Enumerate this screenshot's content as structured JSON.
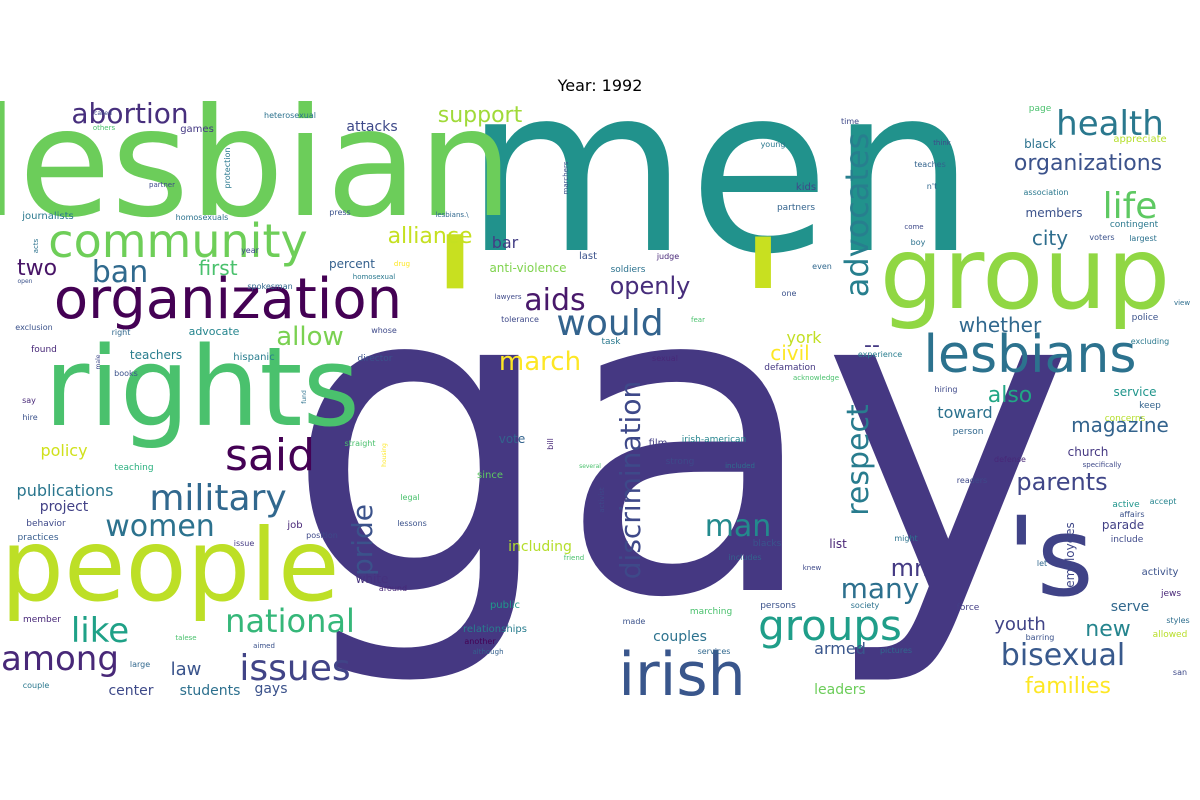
{
  "title": "Year: 1992",
  "chart_data": {
    "type": "wordcloud",
    "title": "Year: 1992",
    "palette": "viridis",
    "words": [
      {
        "text": "gay",
        "size": 430,
        "color": "#453882"
      },
      {
        "text": "men",
        "size": 230,
        "color": "#21928c"
      },
      {
        "text": "lesbian",
        "size": 150,
        "color": "#6ccd5a"
      },
      {
        "text": "'",
        "size": 200,
        "color": "#c8e020"
      },
      {
        "text": "'",
        "size": 190,
        "color": "#c8e020"
      },
      {
        "text": "'s",
        "size": 110,
        "color": "#404387"
      },
      {
        "text": "rights",
        "size": 110,
        "color": "#4ac16d"
      },
      {
        "text": "people",
        "size": 100,
        "color": "#bddf26"
      },
      {
        "text": "group",
        "size": 100,
        "color": "#90d743"
      },
      {
        "text": "organization",
        "size": 56,
        "color": "#440154"
      },
      {
        "text": "irish",
        "size": 60,
        "color": "#39568c"
      },
      {
        "text": "lesbians",
        "size": 52,
        "color": "#2c728e"
      },
      {
        "text": "community",
        "size": 46,
        "color": "#6ece58"
      },
      {
        "text": "said",
        "size": 44,
        "color": "#440154"
      },
      {
        "text": "groups",
        "size": 42,
        "color": "#1f9e89"
      },
      {
        "text": "military",
        "size": 36,
        "color": "#31688e"
      },
      {
        "text": "life",
        "size": 36,
        "color": "#5ec962"
      },
      {
        "text": "health",
        "size": 34,
        "color": "#2a788e"
      },
      {
        "text": "among",
        "size": 34,
        "color": "#482878"
      },
      {
        "text": "issues",
        "size": 36,
        "color": "#414487"
      },
      {
        "text": "would",
        "size": 36,
        "color": "#33638d"
      },
      {
        "text": "national",
        "size": 32,
        "color": "#35b779"
      },
      {
        "text": "bisexual",
        "size": 30,
        "color": "#38598c"
      },
      {
        "text": "like",
        "size": 34,
        "color": "#1fa187"
      },
      {
        "text": "women",
        "size": 30,
        "color": "#2c728e"
      },
      {
        "text": "advocates",
        "size": 32,
        "color": "#277f8e"
      },
      {
        "text": "respect",
        "size": 30,
        "color": "#287c8e"
      },
      {
        "text": "pride",
        "size": 28,
        "color": "#3b528b"
      },
      {
        "text": "discrimination",
        "size": 28,
        "color": "#3e4989"
      },
      {
        "text": "ban",
        "size": 30,
        "color": "#306a8e"
      },
      {
        "text": "man",
        "size": 30,
        "color": "#238a8d"
      },
      {
        "text": "many",
        "size": 28,
        "color": "#2d708e"
      },
      {
        "text": "aids",
        "size": 30,
        "color": "#48186a"
      },
      {
        "text": "abortion",
        "size": 28,
        "color": "#472f7d"
      },
      {
        "text": "march",
        "size": 26,
        "color": "#fde725"
      },
      {
        "text": "allow",
        "size": 26,
        "color": "#7ad151"
      },
      {
        "text": "openly",
        "size": 24,
        "color": "#472d7b"
      },
      {
        "text": "parents",
        "size": 24,
        "color": "#404688"
      },
      {
        "text": "mr.",
        "size": 24,
        "color": "#443a83"
      },
      {
        "text": "alliance",
        "size": 22,
        "color": "#c5e021"
      },
      {
        "text": "support",
        "size": 22,
        "color": "#a0da39"
      },
      {
        "text": "organizations",
        "size": 22,
        "color": "#3b528b"
      },
      {
        "text": "whether",
        "size": 20,
        "color": "#31688e"
      },
      {
        "text": "magazine",
        "size": 20,
        "color": "#33638d"
      },
      {
        "text": "also",
        "size": 22,
        "color": "#21a685"
      },
      {
        "text": "families",
        "size": 22,
        "color": "#fde725"
      },
      {
        "text": "new",
        "size": 22,
        "color": "#25858e"
      },
      {
        "text": "first",
        "size": 20,
        "color": "#4ac16d"
      },
      {
        "text": "two",
        "size": 22,
        "color": "#481467"
      },
      {
        "text": "city",
        "size": 20,
        "color": "#2e6e8e"
      },
      {
        "text": "civil",
        "size": 20,
        "color": "#fde725"
      },
      {
        "text": "--",
        "size": 22,
        "color": "#443983"
      },
      {
        "text": "law",
        "size": 18,
        "color": "#3a548c"
      },
      {
        "text": "youth",
        "size": 18,
        "color": "#414487"
      },
      {
        "text": "policy",
        "size": 16,
        "color": "#d0e11c"
      },
      {
        "text": "publications",
        "size": 16,
        "color": "#2a768e"
      },
      {
        "text": "york",
        "size": 16,
        "color": "#c2df23"
      },
      {
        "text": "toward",
        "size": 16,
        "color": "#2c728e"
      },
      {
        "text": "armed",
        "size": 16,
        "color": "#39568c"
      },
      {
        "text": "serve",
        "size": 14,
        "color": "#31688e"
      },
      {
        "text": "couples",
        "size": 14,
        "color": "#2c728e"
      },
      {
        "text": "gays",
        "size": 14,
        "color": "#3b528b"
      },
      {
        "text": "students",
        "size": 14,
        "color": "#2d708e"
      },
      {
        "text": "center",
        "size": 14,
        "color": "#3e4a89"
      },
      {
        "text": "leaders",
        "size": 14,
        "color": "#6ccd5a"
      },
      {
        "text": "project",
        "size": 14,
        "color": "#424186"
      },
      {
        "text": "including",
        "size": 14,
        "color": "#b5de2b"
      },
      {
        "text": "bar",
        "size": 16,
        "color": "#433e85"
      },
      {
        "text": "attacks",
        "size": 14,
        "color": "#3e4989"
      },
      {
        "text": "teachers",
        "size": 12,
        "color": "#287d8e"
      },
      {
        "text": "white",
        "size": 12,
        "color": "#46327e"
      },
      {
        "text": "parade",
        "size": 12,
        "color": "#424186"
      },
      {
        "text": "list",
        "size": 12,
        "color": "#482475"
      },
      {
        "text": "vote",
        "size": 12,
        "color": "#33638d"
      },
      {
        "text": "percent",
        "size": 12,
        "color": "#34608d"
      },
      {
        "text": "anti-violence",
        "size": 12,
        "color": "#7fd34e"
      },
      {
        "text": "members",
        "size": 12,
        "color": "#3b528b"
      },
      {
        "text": "black",
        "size": 12,
        "color": "#2c728e"
      },
      {
        "text": "church",
        "size": 12,
        "color": "#453882"
      },
      {
        "text": "service",
        "size": 12,
        "color": "#1f958b"
      },
      {
        "text": "employees",
        "size": 12,
        "color": "#3f4788"
      },
      {
        "text": "advocate",
        "size": 11,
        "color": "#25858e"
      },
      {
        "text": "games",
        "size": 10,
        "color": "#443983"
      },
      {
        "text": "journalists",
        "size": 10,
        "color": "#2a788e"
      },
      {
        "text": "homosexuals",
        "size": 8,
        "color": "#2c728e"
      },
      {
        "text": "hispanic",
        "size": 10,
        "color": "#287d8e"
      },
      {
        "text": "books",
        "size": 8,
        "color": "#3b528b"
      },
      {
        "text": "teaching",
        "size": 9,
        "color": "#2ab07f"
      },
      {
        "text": "behavior",
        "size": 9,
        "color": "#3e4989"
      },
      {
        "text": "practices",
        "size": 9,
        "color": "#365c8d"
      },
      {
        "text": "member",
        "size": 9,
        "color": "#482878"
      },
      {
        "text": "large",
        "size": 8,
        "color": "#31688e"
      },
      {
        "text": "couple",
        "size": 8,
        "color": "#2a788e"
      },
      {
        "text": "lessons",
        "size": 8,
        "color": "#3b528b"
      },
      {
        "text": "issue",
        "size": 8,
        "color": "#443a83"
      },
      {
        "text": "position",
        "size": 8,
        "color": "#3e4989"
      },
      {
        "text": "job",
        "size": 10,
        "color": "#482878"
      },
      {
        "text": "legal",
        "size": 8,
        "color": "#4ac16d"
      },
      {
        "text": "since",
        "size": 10,
        "color": "#5ec962"
      },
      {
        "text": "film",
        "size": 10,
        "color": "#433e85"
      },
      {
        "text": "strong",
        "size": 9,
        "color": "#3e4989"
      },
      {
        "text": "irish-american",
        "size": 9,
        "color": "#25848e"
      },
      {
        "text": "blacks",
        "size": 9,
        "color": "#3a548c"
      },
      {
        "text": "includes",
        "size": 8,
        "color": "#33638d"
      },
      {
        "text": "included",
        "size": 7,
        "color": "#2e6e8e"
      },
      {
        "text": "public",
        "size": 10,
        "color": "#1f9a8a"
      },
      {
        "text": "relationships",
        "size": 10,
        "color": "#287d8e"
      },
      {
        "text": "another",
        "size": 8,
        "color": "#440154"
      },
      {
        "text": "although",
        "size": 7,
        "color": "#34608d"
      },
      {
        "text": "services",
        "size": 8,
        "color": "#31688e"
      },
      {
        "text": "made",
        "size": 8,
        "color": "#3b528b"
      },
      {
        "text": "marching",
        "size": 9,
        "color": "#4ac16d"
      },
      {
        "text": "persons",
        "size": 9,
        "color": "#3b528b"
      },
      {
        "text": "society",
        "size": 8,
        "color": "#2c728e"
      },
      {
        "text": "force",
        "size": 9,
        "color": "#433e85"
      },
      {
        "text": "pictures",
        "size": 8,
        "color": "#31688e"
      },
      {
        "text": "barring",
        "size": 8,
        "color": "#3b528b"
      },
      {
        "text": "allowed",
        "size": 9,
        "color": "#b8de29"
      },
      {
        "text": "styles",
        "size": 8,
        "color": "#2e6e8e"
      },
      {
        "text": "jews",
        "size": 9,
        "color": "#482878"
      },
      {
        "text": "activity",
        "size": 10,
        "color": "#3b528b"
      },
      {
        "text": "let",
        "size": 8,
        "color": "#31688e"
      },
      {
        "text": "might",
        "size": 8,
        "color": "#2c728e"
      },
      {
        "text": "knew",
        "size": 7,
        "color": "#3e4989"
      },
      {
        "text": "accept",
        "size": 8,
        "color": "#25848e"
      },
      {
        "text": "affairs",
        "size": 8,
        "color": "#3b528b"
      },
      {
        "text": "include",
        "size": 9,
        "color": "#3e4989"
      },
      {
        "text": "active",
        "size": 9,
        "color": "#1f958b"
      },
      {
        "text": "readers",
        "size": 8,
        "color": "#3e4989"
      },
      {
        "text": "defense",
        "size": 8,
        "color": "#482878"
      },
      {
        "text": "concerns",
        "size": 9,
        "color": "#b5de2b"
      },
      {
        "text": "specifically",
        "size": 7,
        "color": "#3e4989"
      },
      {
        "text": "person",
        "size": 9,
        "color": "#31688e"
      },
      {
        "text": "keep",
        "size": 9,
        "color": "#33638d"
      },
      {
        "text": "hiring",
        "size": 8,
        "color": "#3e4989"
      },
      {
        "text": "experience",
        "size": 8,
        "color": "#287d8e"
      },
      {
        "text": "acknowledge",
        "size": 7,
        "color": "#4ac16d"
      },
      {
        "text": "defamation",
        "size": 9,
        "color": "#453882"
      },
      {
        "text": "excluding",
        "size": 8,
        "color": "#2a788e"
      },
      {
        "text": "police",
        "size": 9,
        "color": "#3b528b"
      },
      {
        "text": "view",
        "size": 7,
        "color": "#2e6e8e"
      },
      {
        "text": "voters",
        "size": 8,
        "color": "#3b528b"
      },
      {
        "text": "largest",
        "size": 8,
        "color": "#2c728e"
      },
      {
        "text": "contingent",
        "size": 9,
        "color": "#2a788e"
      },
      {
        "text": "come",
        "size": 7,
        "color": "#3e4989"
      },
      {
        "text": "boy",
        "size": 8,
        "color": "#2c728e"
      },
      {
        "text": "association",
        "size": 8,
        "color": "#2a788e"
      },
      {
        "text": "n't",
        "size": 8,
        "color": "#31688e"
      },
      {
        "text": "teaches",
        "size": 8,
        "color": "#33638d"
      },
      {
        "text": "think",
        "size": 7,
        "color": "#3e4989"
      },
      {
        "text": "appreciate",
        "size": 10,
        "color": "#b5de2b"
      },
      {
        "text": "page",
        "size": 9,
        "color": "#4ac16d"
      },
      {
        "text": "time",
        "size": 8,
        "color": "#3e4989"
      },
      {
        "text": "young",
        "size": 8,
        "color": "#2a788e"
      },
      {
        "text": "partners",
        "size": 9,
        "color": "#33638d"
      },
      {
        "text": "kids",
        "size": 10,
        "color": "#3e4989"
      },
      {
        "text": "marchers",
        "size": 7,
        "color": "#3b528b"
      },
      {
        "text": "judge",
        "size": 8,
        "color": "#482878"
      },
      {
        "text": "soldiers",
        "size": 9,
        "color": "#2c728e"
      },
      {
        "text": "last",
        "size": 10,
        "color": "#3b528b"
      },
      {
        "text": "even",
        "size": 8,
        "color": "#31688e"
      },
      {
        "text": "one",
        "size": 8,
        "color": "#3b528b"
      },
      {
        "text": "lawyers",
        "size": 7,
        "color": "#3e4989"
      },
      {
        "text": "tolerance",
        "size": 8,
        "color": "#3e4989"
      },
      {
        "text": "fear",
        "size": 7,
        "color": "#4ac16d"
      },
      {
        "text": "task",
        "size": 9,
        "color": "#2a788e"
      },
      {
        "text": "sexual",
        "size": 8,
        "color": "#482878"
      },
      {
        "text": "director",
        "size": 9,
        "color": "#3b528b"
      },
      {
        "text": "whose",
        "size": 8,
        "color": "#3e4989"
      },
      {
        "text": "around",
        "size": 8,
        "color": "#482878"
      },
      {
        "text": "drug",
        "size": 7,
        "color": "#fde725"
      },
      {
        "text": "homosexual",
        "size": 7,
        "color": "#2a788e"
      },
      {
        "text": "spokesman",
        "size": 8,
        "color": "#31688e"
      },
      {
        "text": "press",
        "size": 8,
        "color": "#3b528b"
      },
      {
        "text": "lesbians.\\",
        "size": 7,
        "color": "#31688e"
      },
      {
        "text": "heterosexual",
        "size": 8,
        "color": "#2c728e"
      },
      {
        "text": "protection",
        "size": 8,
        "color": "#2a788e"
      },
      {
        "text": "partner",
        "size": 7,
        "color": "#3e4989"
      },
      {
        "text": "others",
        "size": 7,
        "color": "#4ac16d"
      },
      {
        "text": "called",
        "size": 6,
        "color": "#3e4989"
      },
      {
        "text": "open",
        "size": 6,
        "color": "#3b528b"
      },
      {
        "text": "year",
        "size": 8,
        "color": "#3e4989"
      },
      {
        "text": "acts",
        "size": 7,
        "color": "#2c728e"
      },
      {
        "text": "exclusion",
        "size": 8,
        "color": "#3b528b"
      },
      {
        "text": "right",
        "size": 8,
        "color": "#31688e"
      },
      {
        "text": "found",
        "size": 9,
        "color": "#482878"
      },
      {
        "text": "male",
        "size": 6,
        "color": "#3e4989"
      },
      {
        "text": "say",
        "size": 8,
        "color": "#482878"
      },
      {
        "text": "hire",
        "size": 8,
        "color": "#3b528b"
      },
      {
        "text": "straight",
        "size": 8,
        "color": "#4ac16d"
      },
      {
        "text": "fund",
        "size": 6,
        "color": "#2c728e"
      },
      {
        "text": "housing",
        "size": 6,
        "color": "#fde725"
      },
      {
        "text": "bill",
        "size": 8,
        "color": "#482878"
      },
      {
        "text": "several",
        "size": 6,
        "color": "#4ac16d"
      },
      {
        "text": "activist",
        "size": 7,
        "color": "#3e4989"
      },
      {
        "text": "friend",
        "size": 7,
        "color": "#4ac16d"
      },
      {
        "text": "aimed",
        "size": 7,
        "color": "#3b528b"
      },
      {
        "text": "talese",
        "size": 7,
        "color": "#4ac16d"
      },
      {
        "text": "san",
        "size": 8,
        "color": "#3e4989"
      }
    ]
  }
}
